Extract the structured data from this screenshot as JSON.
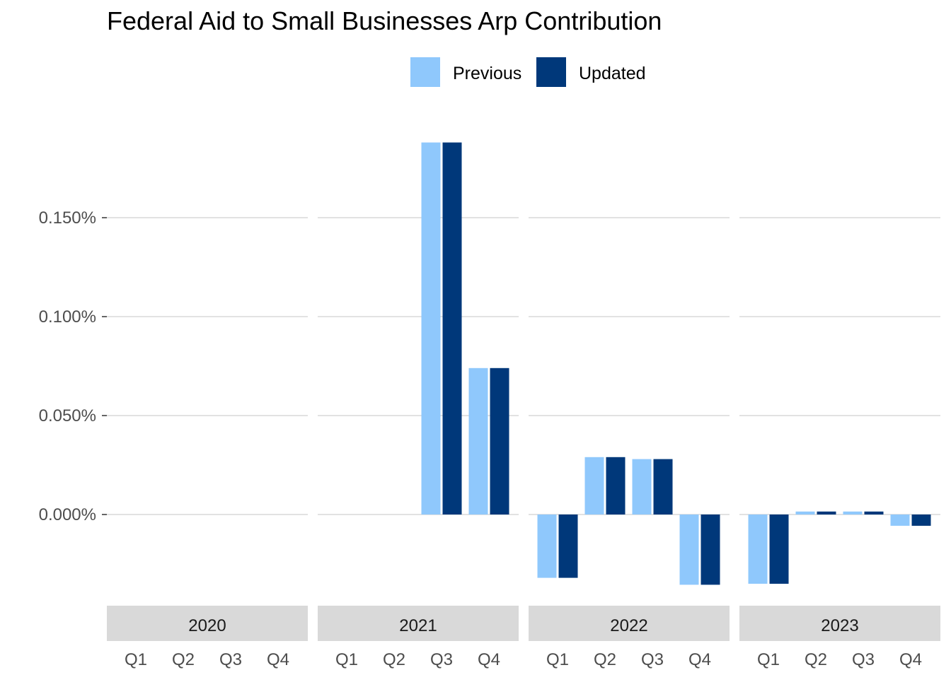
{
  "chart_data": {
    "type": "bar",
    "title": "Federal Aid to Small Businesses Arp Contribution",
    "xlabel": "",
    "ylabel": "",
    "legend_position": "top",
    "grid": "horizontal major lines",
    "ylim": [
      -0.046,
      0.2
    ],
    "y_ticks": [
      0.0,
      0.05,
      0.1,
      0.15
    ],
    "y_tick_labels": [
      "0.000%",
      "0.050%",
      "0.100%",
      "0.150%"
    ],
    "facets": [
      "2020",
      "2021",
      "2022",
      "2023"
    ],
    "categories": [
      "Q1",
      "Q2",
      "Q3",
      "Q4"
    ],
    "series": [
      {
        "name": "Previous",
        "color": "#8fc8fc",
        "values": [
          [
            0,
            0,
            0,
            0
          ],
          [
            0,
            0,
            0.188,
            0.074
          ],
          [
            -0.032,
            0.029,
            0.028,
            -0.0355
          ],
          [
            -0.035,
            0.0015,
            0.0015,
            -0.0057
          ]
        ]
      },
      {
        "name": "Updated",
        "color": "#00387a",
        "values": [
          [
            0,
            0,
            0,
            0
          ],
          [
            0,
            0,
            0.188,
            0.074
          ],
          [
            -0.032,
            0.029,
            0.028,
            -0.0355
          ],
          [
            -0.035,
            0.0015,
            0.0015,
            -0.0057
          ]
        ]
      }
    ],
    "colors": {
      "gridline": "#d9d9d9",
      "strip_background": "#d9d9d9",
      "axis_text": "#4d4d4d",
      "strip_text": "#1a1a1a"
    }
  }
}
